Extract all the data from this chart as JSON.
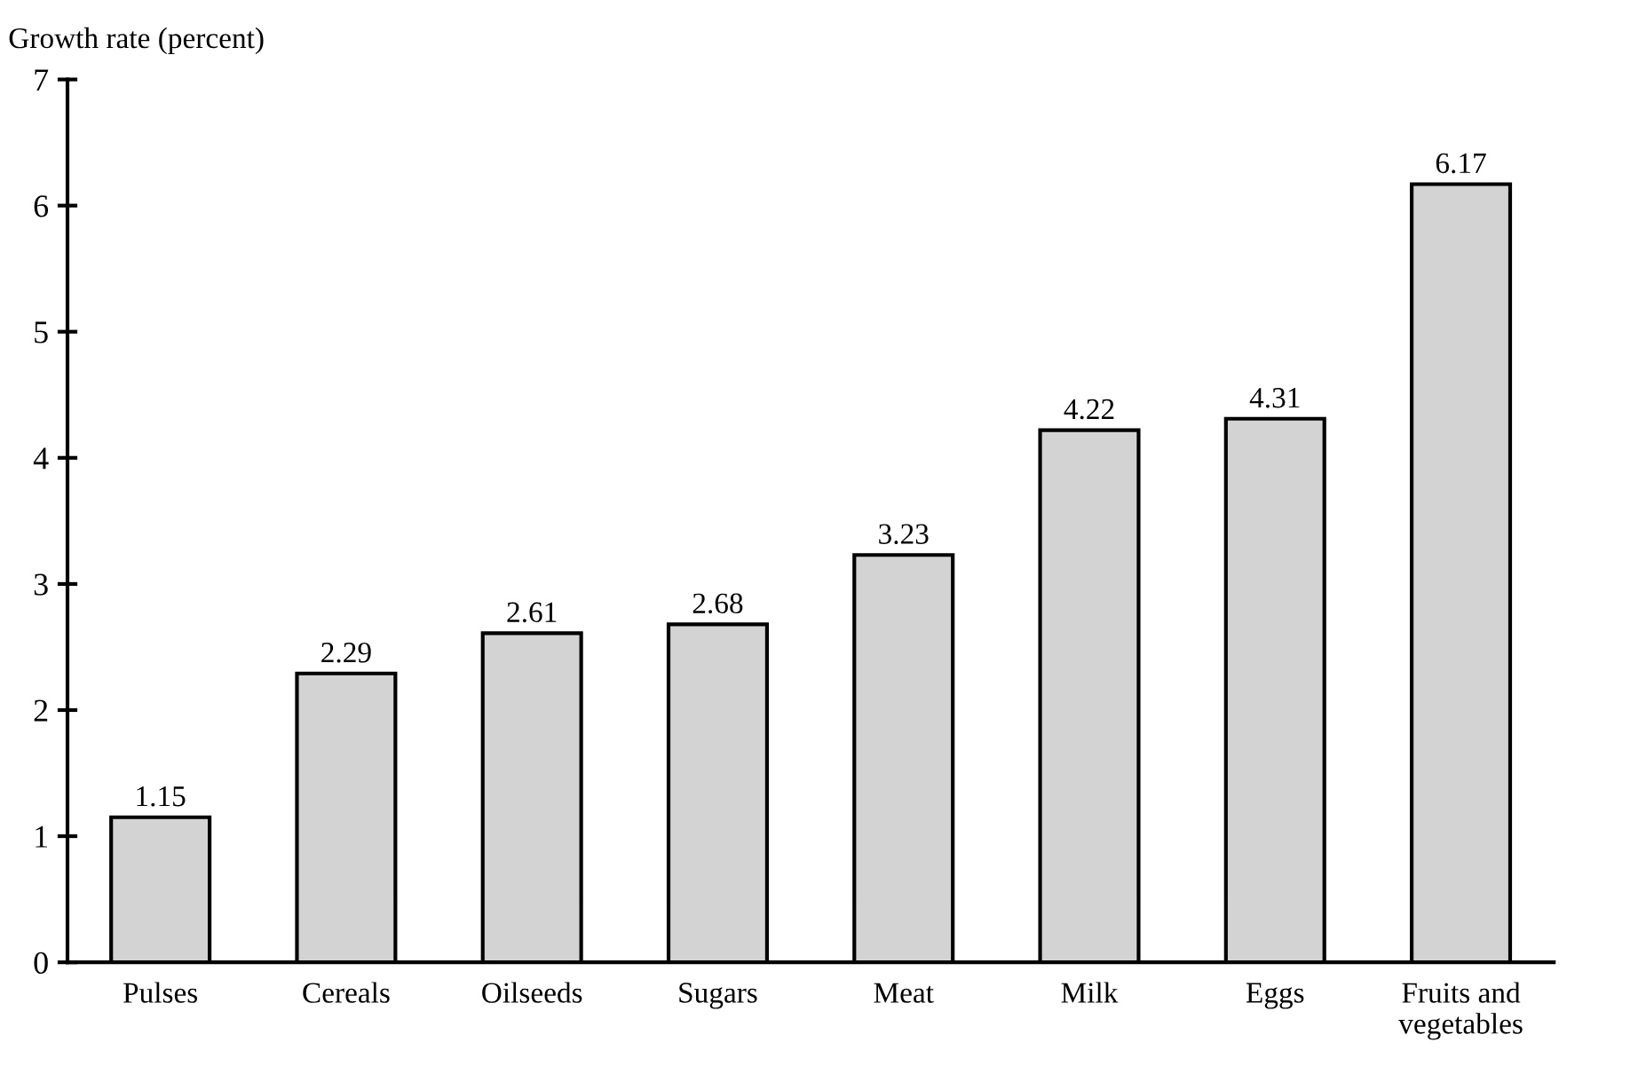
{
  "chart_data": {
    "type": "bar",
    "ylabel": "Growth rate (percent)",
    "categories": [
      "Pulses",
      "Cereals",
      "Oilseeds",
      "Sugars",
      "Meat",
      "Milk",
      "Eggs",
      "Fruits and\nvegetables"
    ],
    "values": [
      1.15,
      2.29,
      2.61,
      2.68,
      3.23,
      4.22,
      4.31,
      6.17
    ],
    "color": "#d3d3d3",
    "data_labels": true,
    "ylim": [
      0,
      7
    ],
    "yticks": [
      0,
      1,
      2,
      3,
      4,
      5,
      6,
      7
    ],
    "grid": false
  }
}
